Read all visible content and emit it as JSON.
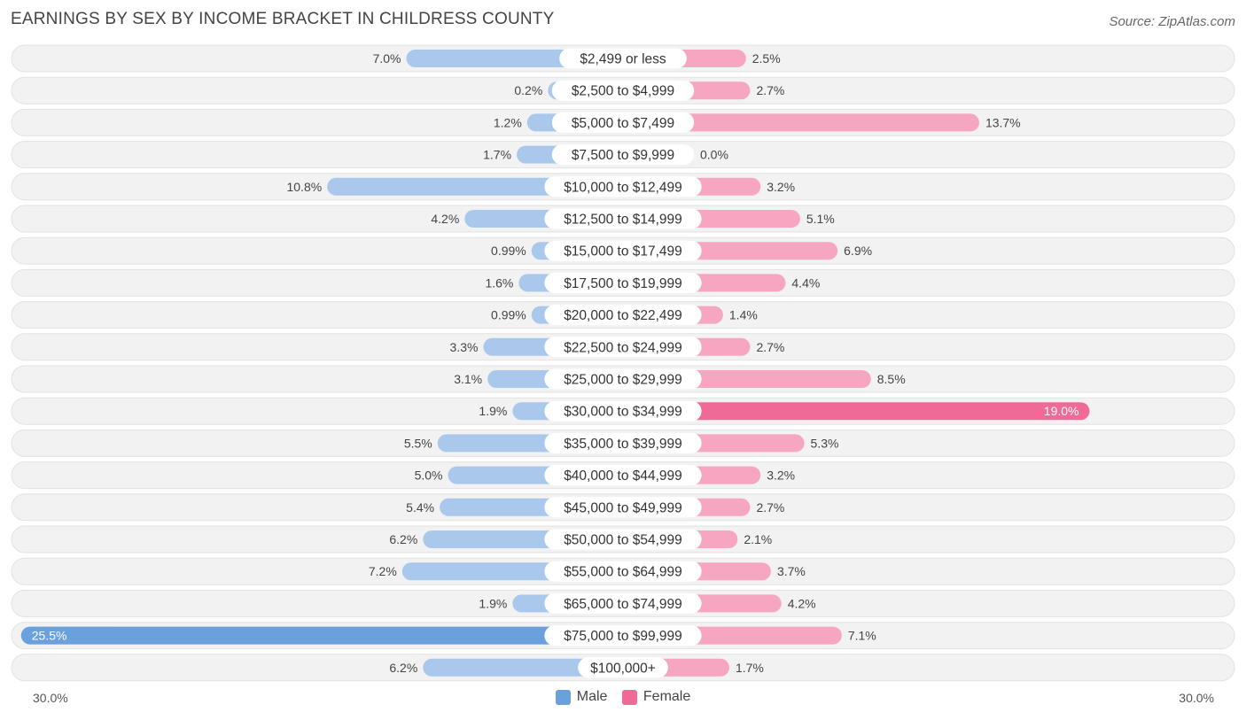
{
  "chart_data": {
    "type": "bar",
    "orientation": "horizontal-diverging",
    "title": "EARNINGS BY SEX BY INCOME BRACKET IN CHILDRESS COUNTY",
    "source": "Source: ZipAtlas.com",
    "categories": [
      "$2,499 or less",
      "$2,500 to $4,999",
      "$5,000 to $7,499",
      "$7,500 to $9,999",
      "$10,000 to $12,499",
      "$12,500 to $14,999",
      "$15,000 to $17,499",
      "$17,500 to $19,999",
      "$20,000 to $22,499",
      "$22,500 to $24,999",
      "$25,000 to $29,999",
      "$30,000 to $34,999",
      "$35,000 to $39,999",
      "$40,000 to $44,999",
      "$45,000 to $49,999",
      "$50,000 to $54,999",
      "$55,000 to $64,999",
      "$65,000 to $74,999",
      "$75,000 to $99,999",
      "$100,000+"
    ],
    "series": [
      {
        "name": "Male",
        "color": "#6aa0dc",
        "light_color": "#a9c8ec",
        "values": [
          7.0,
          0.2,
          1.2,
          1.7,
          10.8,
          4.2,
          0.99,
          1.6,
          0.99,
          3.3,
          3.1,
          1.9,
          5.5,
          5.0,
          5.4,
          6.2,
          7.2,
          1.9,
          25.5,
          6.2
        ],
        "labels": [
          "7.0%",
          "0.2%",
          "1.2%",
          "1.7%",
          "10.8%",
          "4.2%",
          "0.99%",
          "1.6%",
          "0.99%",
          "3.3%",
          "3.1%",
          "1.9%",
          "5.5%",
          "5.0%",
          "5.4%",
          "6.2%",
          "7.2%",
          "1.9%",
          "25.5%",
          "6.2%"
        ]
      },
      {
        "name": "Female",
        "color": "#f06a97",
        "light_color": "#f6a6c0",
        "values": [
          2.5,
          2.7,
          13.7,
          0.0,
          3.2,
          5.1,
          6.9,
          4.4,
          1.4,
          2.7,
          8.5,
          19.0,
          5.3,
          3.2,
          2.7,
          2.1,
          3.7,
          4.2,
          7.1,
          1.7
        ],
        "labels": [
          "2.5%",
          "2.7%",
          "13.7%",
          "0.0%",
          "3.2%",
          "5.1%",
          "6.9%",
          "4.4%",
          "1.4%",
          "2.7%",
          "8.5%",
          "19.0%",
          "5.3%",
          "3.2%",
          "2.7%",
          "2.1%",
          "3.7%",
          "4.2%",
          "7.1%",
          "1.7%"
        ]
      }
    ],
    "xlim": [
      -30,
      30
    ],
    "axis_left_label": "30.0%",
    "axis_right_label": "30.0%",
    "legend": [
      "Male",
      "Female"
    ],
    "legend_position": "bottom-center"
  }
}
